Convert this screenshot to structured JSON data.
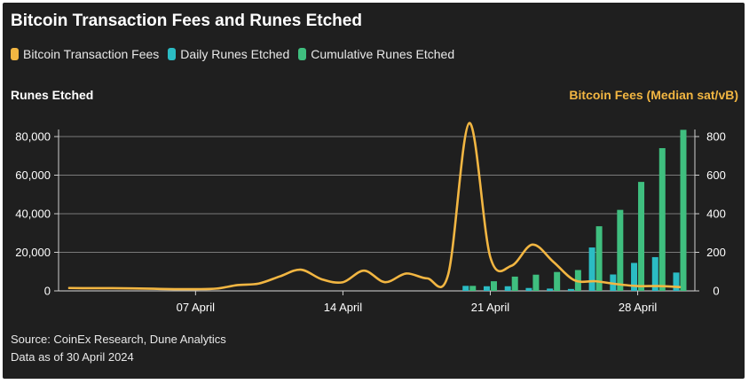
{
  "title": "Bitcoin Transaction Fees and Runes Etched",
  "legend": [
    {
      "label": "Bitcoin Transaction Fees",
      "color": "#f2b642"
    },
    {
      "label": "Daily Runes Etched",
      "color": "#2bbcc4"
    },
    {
      "label": "Cumulative Runes Etched",
      "color": "#3fbf7f"
    }
  ],
  "left_axis_title": "Runes Etched",
  "right_axis_title": "Bitcoin Fees (Median sat/vB)",
  "source": "Source: CoinEx Research, Dune Analytics",
  "data_note": "Data as of 30 April 2024",
  "chart_data": {
    "type": "bar+line",
    "x_range": [
      "2024-04-01",
      "2024-04-30"
    ],
    "x_ticks": [
      {
        "date": "2024-04-07",
        "label": "07 April"
      },
      {
        "date": "2024-04-14",
        "label": "14 April"
      },
      {
        "date": "2024-04-21",
        "label": "21 April"
      },
      {
        "date": "2024-04-28",
        "label": "28 April"
      }
    ],
    "y_left": {
      "min": 0,
      "max": 80000,
      "ticks": [
        0,
        20000,
        40000,
        60000,
        80000
      ],
      "tick_labels": [
        "0",
        "20,000",
        "40,000",
        "60,000",
        "80,000"
      ]
    },
    "y_right": {
      "min": 0,
      "max": 800,
      "ticks": [
        0,
        200,
        400,
        600,
        800
      ],
      "tick_labels": [
        "0",
        "200",
        "400",
        "600",
        "800"
      ]
    },
    "grid": true,
    "bars": {
      "dates": [
        "2024-04-20",
        "2024-04-21",
        "2024-04-22",
        "2024-04-23",
        "2024-04-24",
        "2024-04-25",
        "2024-04-26",
        "2024-04-27",
        "2024-04-28",
        "2024-04-29",
        "2024-04-30"
      ],
      "series": [
        {
          "name": "Daily Runes Etched",
          "axis": "left",
          "color": "#2bbcc4",
          "values": [
            2600,
            2400,
            2400,
            1500,
            1200,
            1000,
            22500,
            8500,
            14500,
            17500,
            9500
          ]
        },
        {
          "name": "Cumulative Runes Etched",
          "axis": "left",
          "color": "#3fbf7f",
          "values": [
            2600,
            5000,
            7400,
            8400,
            9800,
            10800,
            33500,
            42000,
            56500,
            74000,
            83500
          ]
        }
      ]
    },
    "line": {
      "name": "Bitcoin Transaction Fees",
      "axis": "right",
      "color": "#f2b642",
      "points": [
        [
          "2024-04-01",
          15
        ],
        [
          "2024-04-02",
          14
        ],
        [
          "2024-04-03",
          14
        ],
        [
          "2024-04-04",
          13
        ],
        [
          "2024-04-05",
          11
        ],
        [
          "2024-04-06",
          9
        ],
        [
          "2024-04-07",
          9
        ],
        [
          "2024-04-08",
          12
        ],
        [
          "2024-04-09",
          30
        ],
        [
          "2024-04-10",
          38
        ],
        [
          "2024-04-11",
          75
        ],
        [
          "2024-04-12",
          110
        ],
        [
          "2024-04-13",
          60
        ],
        [
          "2024-04-14",
          45
        ],
        [
          "2024-04-15",
          105
        ],
        [
          "2024-04-16",
          45
        ],
        [
          "2024-04-17",
          90
        ],
        [
          "2024-04-18",
          65
        ],
        [
          "2024-04-19",
          85
        ],
        [
          "2024-04-20",
          870
        ],
        [
          "2024-04-21",
          175
        ],
        [
          "2024-04-22",
          130
        ],
        [
          "2024-04-23",
          240
        ],
        [
          "2024-04-24",
          150
        ],
        [
          "2024-04-25",
          55
        ],
        [
          "2024-04-26",
          50
        ],
        [
          "2024-04-27",
          35
        ],
        [
          "2024-04-28",
          25
        ],
        [
          "2024-04-29",
          25
        ],
        [
          "2024-04-30",
          20
        ]
      ]
    }
  }
}
